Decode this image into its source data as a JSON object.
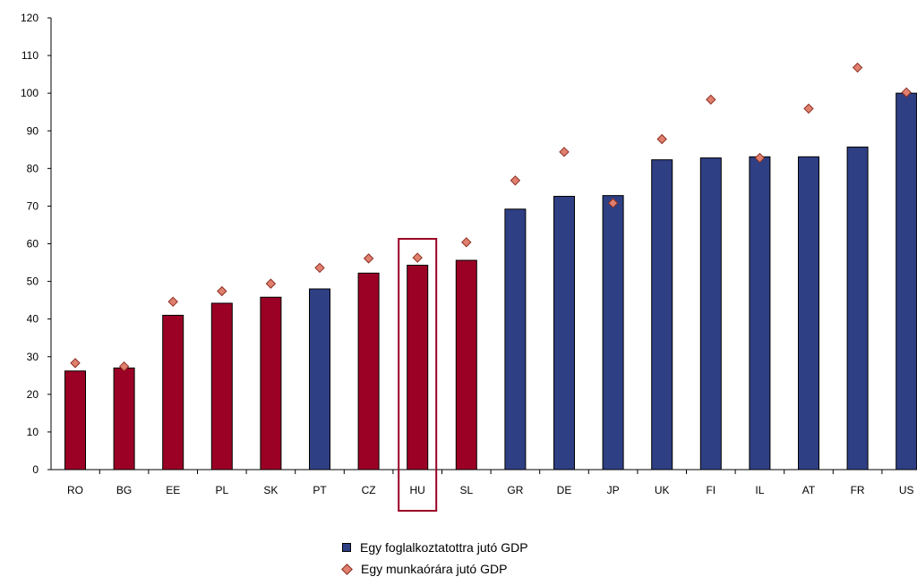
{
  "chart_data": {
    "type": "bar",
    "categories": [
      "RO",
      "BG",
      "EE",
      "PL",
      "SK",
      "PT",
      "CZ",
      "HU",
      "SL",
      "GR",
      "DE",
      "JP",
      "UK",
      "FI",
      "IL",
      "AT",
      "FR",
      "US"
    ],
    "series": [
      {
        "name": "Egy foglalkoztatottra jutó GDP",
        "type": "bar",
        "values": [
          26.2,
          27,
          41,
          44.2,
          45.8,
          48,
          52.2,
          54.3,
          55.6,
          69.2,
          72.6,
          72.8,
          82.3,
          82.8,
          83.1,
          83.1,
          85.7,
          100
        ]
      },
      {
        "name": "Egy munkaórára jutó GDP",
        "type": "scatter",
        "values": [
          28.3,
          27.4,
          44.6,
          47.4,
          49.4,
          53.6,
          56.1,
          56.3,
          60.4,
          76.8,
          84.4,
          70.8,
          87.8,
          98.3,
          82.8,
          95.9,
          106.8,
          100.2
        ]
      }
    ],
    "highlight_category": "HU",
    "ylim": [
      0,
      120
    ],
    "yticks": [
      0,
      10,
      20,
      30,
      40,
      50,
      60,
      70,
      80,
      90,
      100,
      110,
      120
    ],
    "title": "",
    "xlabel": "",
    "ylabel": "",
    "legend_position": "bottom-center",
    "colors": {
      "cee_bar": "#9b0025",
      "other_bar": "#2f3f84",
      "marker_fill": "#e07f6e",
      "marker_stroke": "#8a2e22",
      "highlight": "#9b0025"
    },
    "bar_color_groups": {
      "cee_bar": [
        "RO",
        "BG",
        "EE",
        "PL",
        "SK",
        "CZ",
        "HU",
        "SL"
      ]
    },
    "grid": false
  },
  "legend": {
    "bar_label": "Egy foglalkoztatottra jutó GDP",
    "marker_label": "Egy munkaórára jutó GDP"
  }
}
